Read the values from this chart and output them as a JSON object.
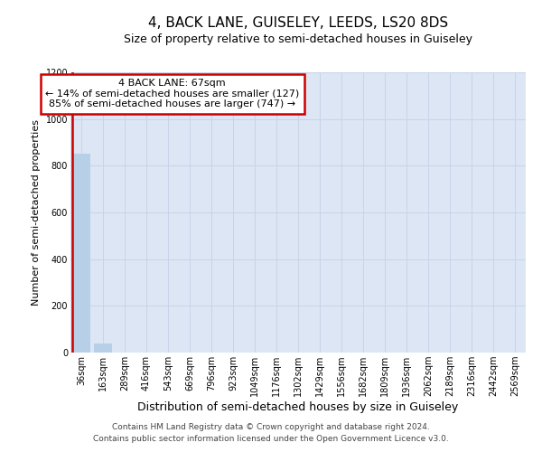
{
  "title": "4, BACK LANE, GUISELEY, LEEDS, LS20 8DS",
  "subtitle": "Size of property relative to semi-detached houses in Guiseley",
  "xlabel": "Distribution of semi-detached houses by size in Guiseley",
  "ylabel": "Number of semi-detached properties",
  "categories": [
    "36sqm",
    "163sqm",
    "289sqm",
    "416sqm",
    "543sqm",
    "669sqm",
    "796sqm",
    "923sqm",
    "1049sqm",
    "1176sqm",
    "1302sqm",
    "1429sqm",
    "1556sqm",
    "1682sqm",
    "1809sqm",
    "1936sqm",
    "2062sqm",
    "2189sqm",
    "2316sqm",
    "2442sqm",
    "2569sqm"
  ],
  "values": [
    851,
    40,
    0,
    0,
    0,
    0,
    0,
    0,
    0,
    0,
    0,
    0,
    0,
    0,
    0,
    0,
    0,
    0,
    0,
    0,
    0
  ],
  "bar_color": "#b8cfe8",
  "ylim_max": 1200,
  "yticks": [
    0,
    200,
    400,
    600,
    800,
    1000,
    1200
  ],
  "annotation_line1": "4 BACK LANE: 67sqm",
  "annotation_line2": "← 14% of semi-detached houses are smaller (127)",
  "annotation_line3": "85% of semi-detached houses are larger (747) →",
  "property_line_color": "#cc0000",
  "annotation_border_color": "#cc0000",
  "grid_color": "#c8d4e8",
  "plot_bg_color": "#dce6f4",
  "footer_line1": "Contains HM Land Registry data © Crown copyright and database right 2024.",
  "footer_line2": "Contains public sector information licensed under the Open Government Licence v3.0.",
  "title_fontsize": 11,
  "subtitle_fontsize": 9,
  "xlabel_fontsize": 9,
  "ylabel_fontsize": 8,
  "tick_fontsize": 7,
  "annot_fontsize": 8,
  "footer_fontsize": 6.5
}
